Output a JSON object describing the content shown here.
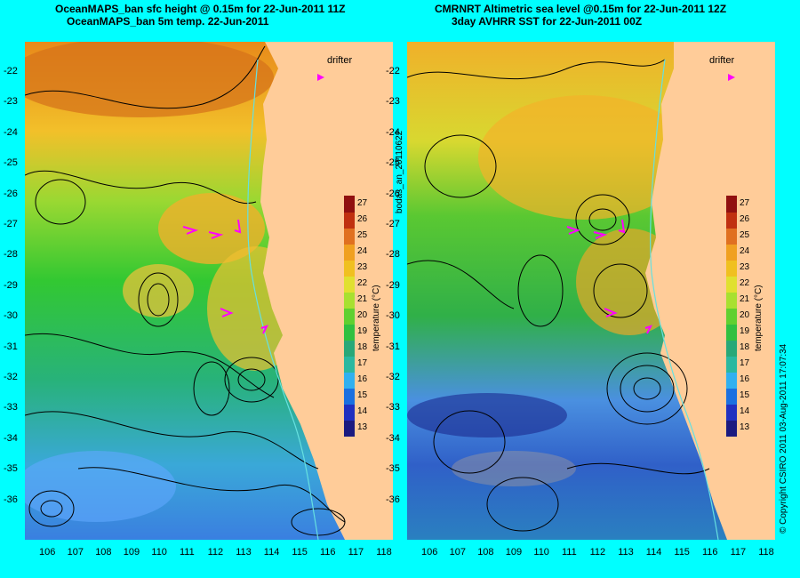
{
  "left": {
    "title_line1": "OceanMAPS_ban sfc height  @ 0.15m for 22-Jun-2011 11Z",
    "title_line2": "OceanMAPS_ban 5m temp. 22-Jun-2011"
  },
  "right": {
    "title_line1": "CMRNRT Altimetric sea level  @0.15m  for 22-Jun-2011 12Z",
    "title_line2": "3day AVHRR SST for 22-Jun-2011 00Z"
  },
  "drifter_label": "drifter",
  "colorbar": {
    "label": "temperature (°C)",
    "ticks": [
      "13",
      "14",
      "15",
      "16",
      "17",
      "18",
      "19",
      "20",
      "21",
      "22",
      "23",
      "24",
      "25",
      "26",
      "27"
    ]
  },
  "side_label": "bodas_an_20110622",
  "copyright": "© Copyright CSIRO 2011   03-Aug-2011 17:07:34",
  "lat_ticks": [
    "-22",
    "-23",
    "-24",
    "-25",
    "-26",
    "-27",
    "-28",
    "-29",
    "-30",
    "-31",
    "-32",
    "-33",
    "-34",
    "-35",
    "-36"
  ],
  "lon_ticks": [
    "106",
    "107",
    "108",
    "109",
    "110",
    "111",
    "112",
    "113",
    "114",
    "115",
    "116",
    "117",
    "118"
  ],
  "map_data": {
    "lon_range": [
      105.5,
      118.2
    ],
    "lat_range": [
      -36.6,
      -21.5
    ],
    "temperature_range": [
      13,
      27
    ],
    "colors": {
      "land": "#ffcc99",
      "frame": "#00ffff",
      "contour": "#000000",
      "drifter": "#ff00ff",
      "isobath": "#66e0e0"
    }
  }
}
